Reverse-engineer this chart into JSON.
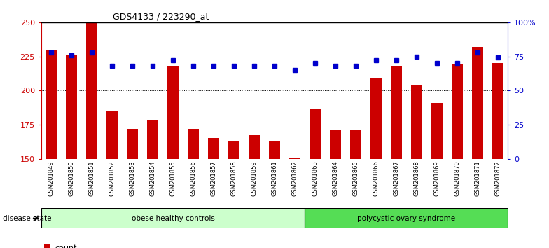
{
  "title": "GDS4133 / 223290_at",
  "samples": [
    "GSM201849",
    "GSM201850",
    "GSM201851",
    "GSM201852",
    "GSM201853",
    "GSM201854",
    "GSM201855",
    "GSM201856",
    "GSM201857",
    "GSM201858",
    "GSM201859",
    "GSM201861",
    "GSM201862",
    "GSM201863",
    "GSM201864",
    "GSM201865",
    "GSM201866",
    "GSM201867",
    "GSM201868",
    "GSM201869",
    "GSM201870",
    "GSM201871",
    "GSM201872"
  ],
  "counts": [
    230,
    226,
    250,
    185,
    172,
    178,
    218,
    172,
    165,
    163,
    168,
    163,
    151,
    187,
    171,
    171,
    209,
    218,
    204,
    191,
    219,
    232,
    220
  ],
  "percentiles": [
    78,
    76,
    78,
    68,
    68,
    68,
    72,
    68,
    68,
    68,
    68,
    68,
    65,
    70,
    68,
    68,
    72,
    72,
    75,
    70,
    70,
    78,
    74
  ],
  "group1_label": "obese healthy controls",
  "group2_label": "polycystic ovary syndrome",
  "group1_count": 13,
  "bar_color": "#CC0000",
  "dot_color": "#0000CC",
  "bar_bottom": 150,
  "ylim_left": [
    150,
    250
  ],
  "ylim_right": [
    0,
    100
  ],
  "yticks_left": [
    150,
    175,
    200,
    225,
    250
  ],
  "yticks_right": [
    0,
    25,
    50,
    75,
    100
  ],
  "yticklabels_right": [
    "0",
    "25",
    "50",
    "75",
    "100%"
  ],
  "grid_lines": [
    175,
    200,
    225
  ],
  "background_color": "#ffffff",
  "plot_bg": "#ffffff",
  "xtick_bg": "#d8d8d8",
  "group1_color": "#ccffcc",
  "group2_color": "#55dd55",
  "disease_state_label": "disease state"
}
